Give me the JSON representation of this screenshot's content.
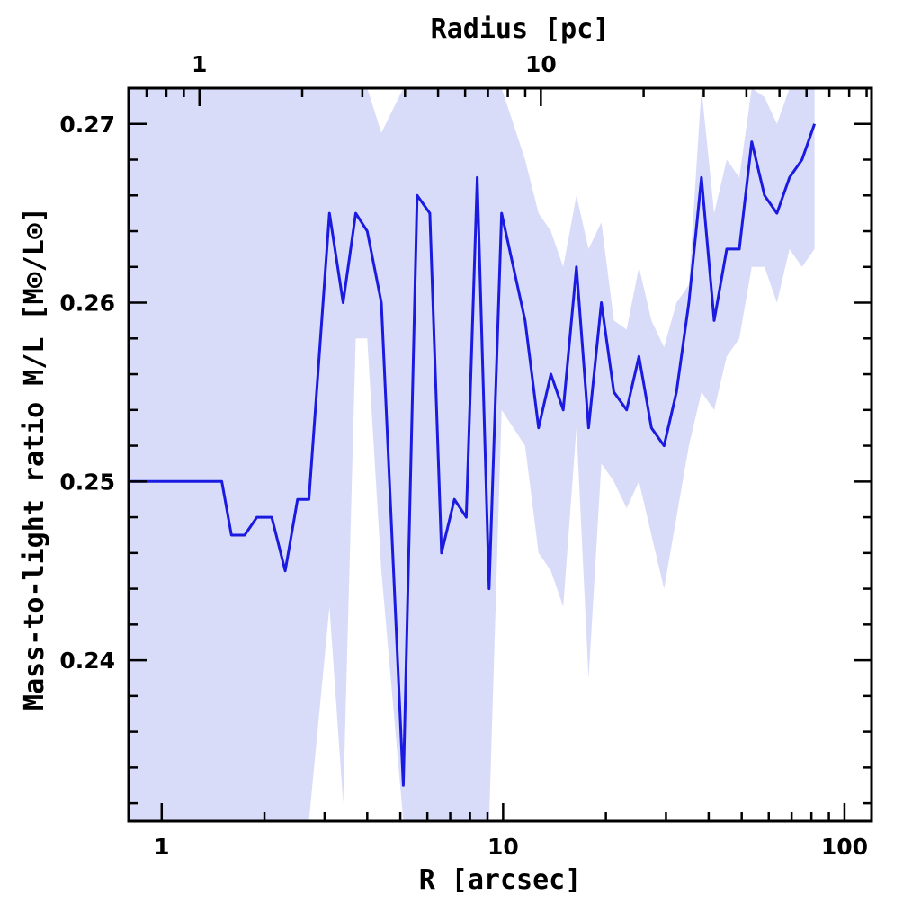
{
  "chart_data": {
    "type": "area",
    "xlabel": "R [arcsec]",
    "x2label": "Radius [pc]",
    "ylabel": "Mass-to-light ratio M/L [M⊙/L⊙]",
    "xscale": "log",
    "xlim": [
      0.8,
      120
    ],
    "ylim": [
      0.231,
      0.272
    ],
    "x2_ticks": [
      {
        "pos": 1.29,
        "label": "1"
      },
      {
        "pos": 12.9,
        "label": "10"
      }
    ],
    "x_ticks": [
      {
        "value": 1,
        "label": "1"
      },
      {
        "value": 10,
        "label": "10"
      },
      {
        "value": 100,
        "label": "100"
      }
    ],
    "y_ticks": [
      {
        "value": 0.24,
        "label": "0.24"
      },
      {
        "value": 0.25,
        "label": "0.25"
      },
      {
        "value": 0.26,
        "label": "0.26"
      },
      {
        "value": 0.27,
        "label": "0.27"
      }
    ],
    "series": [
      {
        "color": "#1a1ae0",
        "x": [
          0.8,
          1.5,
          1.6,
          1.75,
          1.9,
          2.1,
          2.3,
          2.5,
          2.7,
          3.1,
          3.4,
          3.7,
          4.0,
          4.4,
          5.1,
          5.6,
          6.1,
          6.6,
          7.2,
          7.8,
          8.4,
          9.1,
          9.9,
          11.6,
          12.7,
          13.8,
          15.0,
          16.4,
          17.8,
          19.4,
          21.1,
          23.0,
          25.0,
          27.2,
          29.6,
          32.2,
          35.0,
          38.1,
          41.5,
          45.2,
          49.2,
          53.5,
          58.3,
          63.4,
          69.0,
          75.1,
          81.7
        ],
        "y": [
          0.25,
          0.25,
          0.247,
          0.247,
          0.248,
          0.248,
          0.245,
          0.249,
          0.249,
          0.265,
          0.26,
          0.265,
          0.264,
          0.26,
          0.233,
          0.266,
          0.265,
          0.246,
          0.249,
          0.248,
          0.267,
          0.244,
          0.265,
          0.259,
          0.253,
          0.256,
          0.254,
          0.262,
          0.253,
          0.26,
          0.255,
          0.254,
          0.257,
          0.253,
          0.252,
          0.255,
          0.26,
          0.267,
          0.259,
          0.263,
          0.263,
          0.269,
          0.266,
          0.265,
          0.267,
          0.268,
          0.27
        ],
        "upper": [
          0.272,
          0.272,
          0.272,
          0.272,
          0.272,
          0.272,
          0.272,
          0.272,
          0.272,
          0.272,
          0.272,
          0.272,
          0.272,
          0.2695,
          0.272,
          0.272,
          0.272,
          0.272,
          0.272,
          0.272,
          0.272,
          0.272,
          0.272,
          0.268,
          0.265,
          0.264,
          0.262,
          0.266,
          0.263,
          0.2645,
          0.259,
          0.2585,
          0.262,
          0.259,
          0.2575,
          0.26,
          0.261,
          0.272,
          0.265,
          0.268,
          0.267,
          0.272,
          0.2715,
          0.27,
          0.272,
          0.272,
          0.272
        ],
        "lower": [
          0.231,
          0.231,
          0.231,
          0.231,
          0.231,
          0.231,
          0.231,
          0.231,
          0.231,
          0.243,
          0.232,
          0.258,
          0.258,
          0.245,
          0.231,
          0.231,
          0.231,
          0.231,
          0.231,
          0.231,
          0.231,
          0.231,
          0.254,
          0.252,
          0.246,
          0.245,
          0.243,
          0.253,
          0.239,
          0.251,
          0.25,
          0.2485,
          0.25,
          0.247,
          0.244,
          0.248,
          0.252,
          0.255,
          0.254,
          0.257,
          0.258,
          0.262,
          0.262,
          0.26,
          0.263,
          0.262,
          0.263
        ]
      }
    ]
  }
}
